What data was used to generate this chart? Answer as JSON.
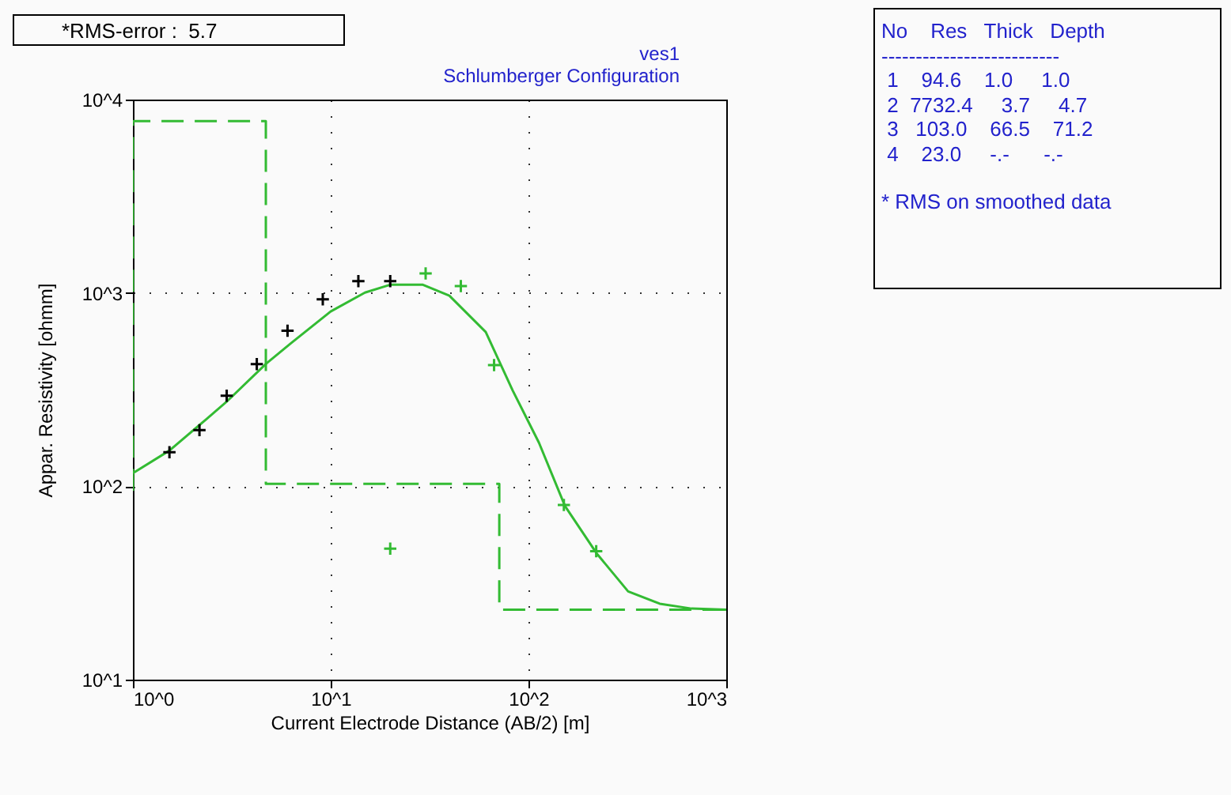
{
  "chart_data": {
    "type": "line",
    "title": "ves1",
    "subtitle": "Schlumberger Configuration",
    "xlabel": "Current Electrode Distance (AB/2) [m]",
    "ylabel": "Appar. Resistivity [ohmm]",
    "log": "xy",
    "xlim": [
      1,
      1000
    ],
    "ylim": [
      10,
      10000
    ],
    "xticks": [
      {
        "value": 1,
        "label": "10^0"
      },
      {
        "value": 10,
        "label": "10^1"
      },
      {
        "value": 100,
        "label": "10^2"
      },
      {
        "value": 1000,
        "label": "10^3"
      }
    ],
    "yticks": [
      {
        "value": 10,
        "label": "10^1"
      },
      {
        "value": 100,
        "label": "10^2"
      },
      {
        "value": 1000,
        "label": "10^3"
      },
      {
        "value": 10000,
        "label": "10^4"
      }
    ],
    "grid": true,
    "series": [
      {
        "color": "#33bb33",
        "line_style": "dashed",
        "x": [
          1,
          1,
          4.7,
          4.7,
          71.2,
          71.2,
          1000
        ],
        "values": [
          94.6,
          7732.4,
          7732.4,
          103,
          103,
          23,
          23
        ]
      },
      {
        "color": "#33bb33",
        "line_style": "solid",
        "x": [
          1,
          1.53,
          2.36,
          2.98,
          4.72,
          6.31,
          10,
          14.9,
          20.1,
          29.1,
          39.8,
          60.8,
          83.2,
          113,
          153,
          221,
          319,
          461,
          667,
          1000
        ],
        "values": [
          117,
          153,
          223,
          274,
          431,
          550,
          802,
          1004,
          1104,
          1104,
          968,
          628,
          313,
          168,
          79,
          45,
          28.6,
          24.7,
          23.3,
          23
        ]
      },
      {
        "type": "scatter",
        "color": "#000000",
        "marker": "cross",
        "x": [
          1.53,
          2.17,
          2.98,
          4.23,
          6.05,
          9.12,
          13.8,
          20
        ],
        "values": [
          150,
          195,
          294,
          428,
          637,
          927,
          1150,
          1150
        ]
      },
      {
        "type": "scatter",
        "color": "#33bb33",
        "marker": "cross",
        "x": [
          20,
          30.2,
          45.5,
          67,
          151,
          220
        ],
        "values": [
          47.6,
          1262,
          1085,
          423,
          80,
          46.2
        ]
      }
    ],
    "annotations": [
      "*RMS-error :  5.7",
      "No    Res   Thick   Depth",
      "--------------------------",
      " 1    94.6    1.0     1.0",
      " 2  7732.4     3.7     4.7",
      " 3   103.0    66.5    71.2",
      " 4    23.0     -.-      -.-",
      "* RMS on smoothed data"
    ]
  }
}
